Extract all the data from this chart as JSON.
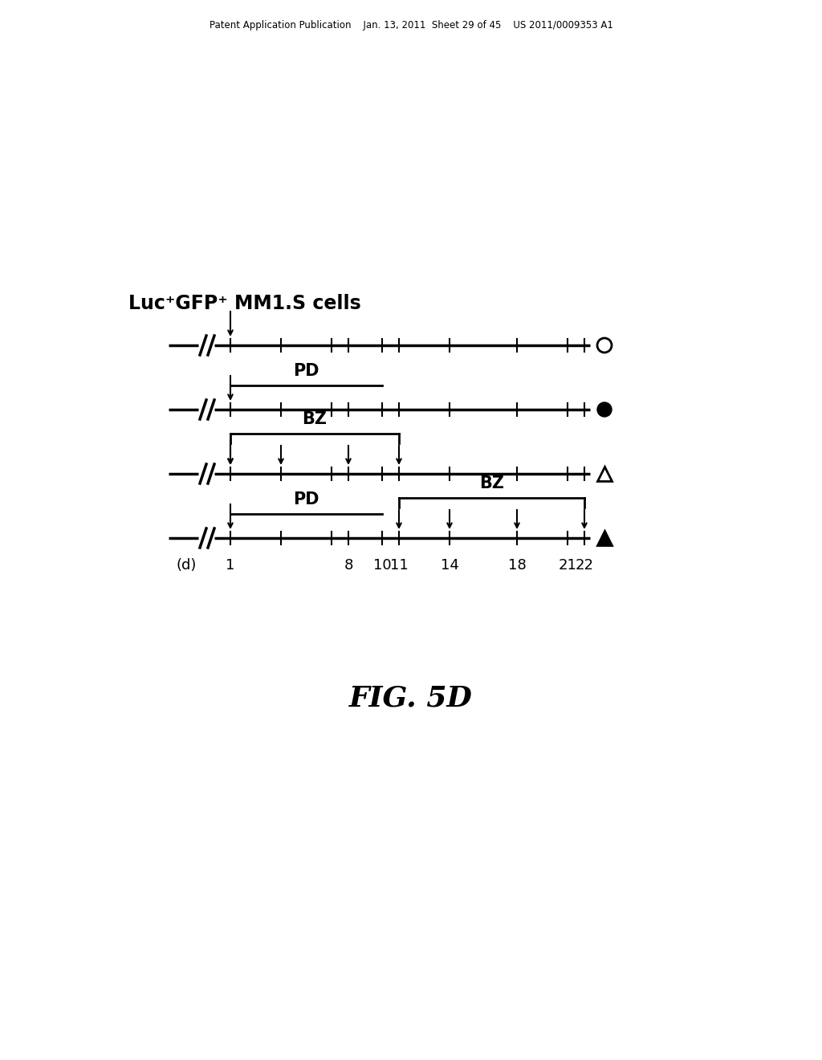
{
  "title": "Luc⁺GFP⁺ MM1.S cells",
  "fig_label": "FIG. 5D",
  "header_text": "Patent Application Publication    Jan. 13, 2011  Sheet 29 of 45    US 2011/0009353 A1",
  "background_color": "#ffffff",
  "rows": [
    {
      "id": 0,
      "marker": "circle_open",
      "pd_bar": null,
      "bz_bar": null,
      "bz_arrows": [],
      "init_arrow_day": 1
    },
    {
      "id": 1,
      "marker": "circle_filled",
      "pd_bar": [
        1,
        10
      ],
      "bz_bar": null,
      "bz_arrows": [],
      "init_arrow_day": 1
    },
    {
      "id": 2,
      "marker": "triangle_open",
      "pd_bar": null,
      "bz_bar": [
        1,
        11
      ],
      "bz_arrows": [
        1,
        4,
        8,
        11
      ],
      "init_arrow_day": 1
    },
    {
      "id": 3,
      "marker": "triangle_filled",
      "pd_bar": [
        1,
        10
      ],
      "bz_bar": [
        11,
        22
      ],
      "bz_arrows": [
        11,
        14,
        18,
        22
      ],
      "init_arrow_day": 1
    }
  ],
  "day_labels": [
    "1",
    "8",
    "10",
    "11",
    "14",
    "18",
    "21",
    "22"
  ],
  "day_positions": [
    1,
    8,
    10,
    11,
    14,
    18,
    21,
    22
  ],
  "tick_days": [
    1,
    4,
    7,
    8,
    10,
    11,
    14,
    18,
    21,
    22
  ]
}
